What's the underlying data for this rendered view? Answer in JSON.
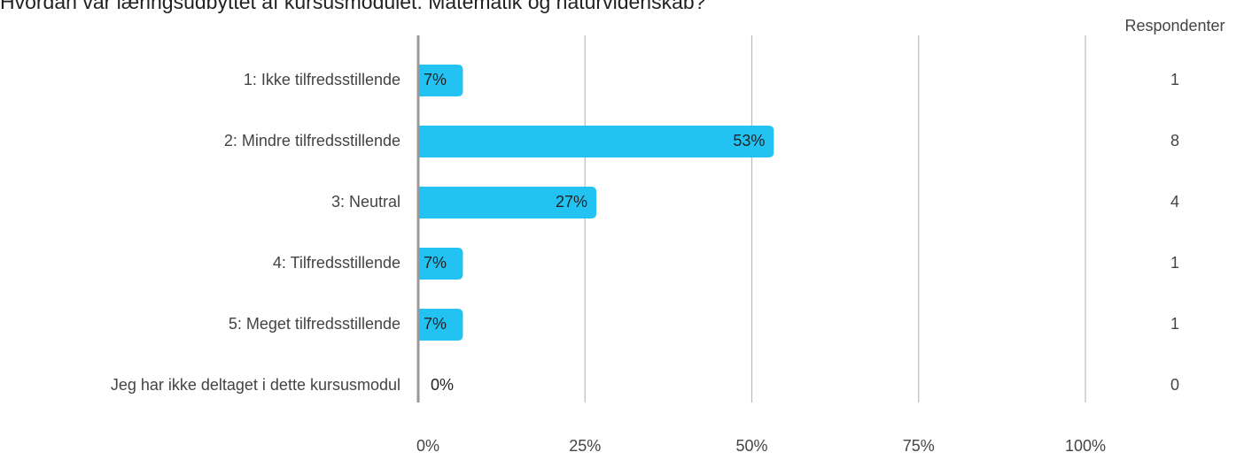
{
  "chart_data": {
    "type": "barh",
    "title": "Hvordan var læringsudbyttet af kursusmodulet: Matematik og naturvidenskab?",
    "categories": [
      "1: Ikke tilfredsstillende",
      "2: Mindre tilfredsstillende",
      "3: Neutral",
      "4: Tilfredsstillende",
      "5: Meget tilfredsstillende",
      "Jeg har ikke deltaget i dette kursusmodul"
    ],
    "values": [
      6.7,
      53.3,
      26.7,
      6.7,
      6.7,
      0
    ],
    "value_labels": [
      "7%",
      "53%",
      "27%",
      "7%",
      "7%",
      "0%"
    ],
    "color": "#22c3f3",
    "xlim": [
      0,
      100
    ],
    "xticks": [
      {
        "value": 0,
        "label": "0%"
      },
      {
        "value": 25,
        "label": "25%"
      },
      {
        "value": 50,
        "label": "50%"
      },
      {
        "value": 75,
        "label": "75%"
      },
      {
        "value": 100,
        "label": "100%"
      }
    ],
    "grid": true,
    "respondents_label": "Respondenter",
    "respondents": [
      1,
      8,
      4,
      1,
      1,
      0
    ]
  }
}
